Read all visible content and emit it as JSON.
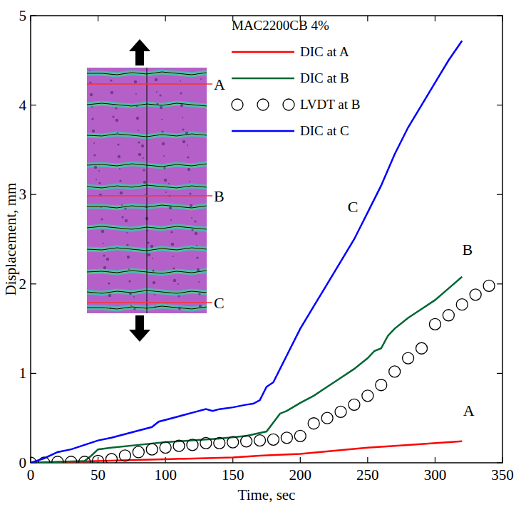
{
  "chart_data": {
    "type": "line",
    "x_label": "Time, sec",
    "y_label": "Displacement, mm",
    "legend_title": "MAC2200CB 4%",
    "legend": "top-right",
    "xlim": [
      0,
      350
    ],
    "ylim": [
      0,
      5
    ],
    "xticks": [
      0,
      50,
      100,
      150,
      200,
      250,
      300,
      350
    ],
    "yticks": [
      0,
      1,
      2,
      3,
      4,
      5
    ],
    "grid": false,
    "series": [
      {
        "name": "DIC at A",
        "color": "#ff0000",
        "line_style": "solid",
        "marker": "none",
        "x": [
          0,
          50,
          100,
          150,
          170,
          200,
          250,
          280,
          320
        ],
        "values": [
          0,
          0.02,
          0.04,
          0.06,
          0.08,
          0.1,
          0.17,
          0.2,
          0.24
        ]
      },
      {
        "name": "DIC at B",
        "color": "#006633",
        "line_style": "solid",
        "marker": "none",
        "x": [
          0,
          40,
          45,
          50,
          60,
          80,
          100,
          120,
          140,
          160,
          175,
          180,
          185,
          190,
          200,
          210,
          220,
          230,
          240,
          250,
          255,
          260,
          265,
          270,
          280,
          290,
          300,
          310,
          320
        ],
        "values": [
          0,
          0.02,
          0.08,
          0.15,
          0.17,
          0.2,
          0.23,
          0.25,
          0.27,
          0.3,
          0.35,
          0.45,
          0.55,
          0.58,
          0.67,
          0.75,
          0.85,
          0.95,
          1.05,
          1.17,
          1.25,
          1.28,
          1.42,
          1.5,
          1.62,
          1.72,
          1.82,
          1.95,
          2.08
        ]
      },
      {
        "name": "LVDT at B",
        "color": "#000000",
        "line_style": "none",
        "marker": "circle",
        "x": [
          0,
          10,
          20,
          30,
          40,
          50,
          60,
          70,
          80,
          90,
          100,
          110,
          120,
          130,
          140,
          150,
          160,
          170,
          180,
          190,
          200,
          210,
          220,
          230,
          240,
          250,
          260,
          270,
          280,
          290,
          300,
          310,
          320,
          330,
          340
        ],
        "values": [
          0,
          0,
          0.01,
          0.01,
          0.01,
          0.02,
          0.04,
          0.08,
          0.12,
          0.15,
          0.17,
          0.19,
          0.2,
          0.22,
          0.22,
          0.23,
          0.24,
          0.25,
          0.26,
          0.28,
          0.3,
          0.44,
          0.5,
          0.57,
          0.65,
          0.75,
          0.87,
          1.02,
          1.17,
          1.28,
          1.55,
          1.65,
          1.77,
          1.88,
          1.98
        ]
      },
      {
        "name": "DIC at C",
        "color": "#0000ff",
        "line_style": "solid",
        "marker": "none",
        "x": [
          0,
          10,
          20,
          30,
          40,
          50,
          60,
          70,
          80,
          90,
          95,
          100,
          110,
          120,
          130,
          135,
          140,
          150,
          160,
          165,
          170,
          175,
          180,
          190,
          200,
          210,
          220,
          230,
          240,
          250,
          260,
          270,
          280,
          290,
          300,
          310,
          320
        ],
        "values": [
          0,
          0.05,
          0.12,
          0.15,
          0.2,
          0.25,
          0.28,
          0.32,
          0.36,
          0.4,
          0.46,
          0.48,
          0.52,
          0.56,
          0.6,
          0.58,
          0.6,
          0.62,
          0.65,
          0.66,
          0.7,
          0.85,
          0.9,
          1.2,
          1.5,
          1.75,
          2.0,
          2.25,
          2.5,
          2.8,
          3.1,
          3.45,
          3.75,
          4.0,
          4.25,
          4.5,
          4.72
        ]
      }
    ],
    "annotations": [
      {
        "text": "C",
        "x": 239,
        "y": 2.87
      },
      {
        "text": "B",
        "x": 324,
        "y": 2.39
      },
      {
        "text": "A",
        "x": 325,
        "y": 0.59
      }
    ],
    "inset_labels": [
      "A",
      "B",
      "C"
    ]
  }
}
